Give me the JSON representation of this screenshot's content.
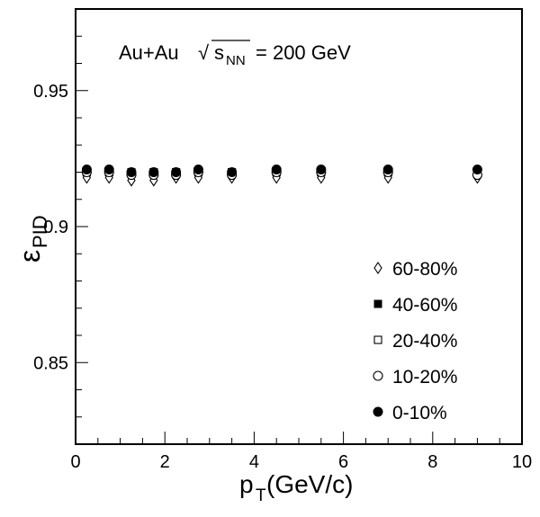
{
  "chart_data": {
    "type": "scatter",
    "xlabel": "p",
    "xlabel_sub": "T",
    "xlabel_unit": "(GeV/c)",
    "ylabel": "ε",
    "ylabel_sub": "PID",
    "xlim": [
      0,
      10
    ],
    "ylim": [
      0.82,
      0.98
    ],
    "x_ticks": [
      0,
      2,
      4,
      6,
      8,
      10
    ],
    "x_tick_labels": [
      "0",
      "2",
      "4",
      "6",
      "8",
      "10"
    ],
    "y_ticks": [
      0.85,
      0.9,
      0.95
    ],
    "y_tick_labels": [
      "0.85",
      "0.9",
      "0.95"
    ],
    "grid": false,
    "legend_position": "bottom-right",
    "annotation": {
      "system": "Au+Au",
      "sqrt_symbol": "√",
      "s_label": "s",
      "s_sub": "NN",
      "energy": "= 200 GeV"
    },
    "x": [
      0.25,
      0.75,
      1.25,
      1.75,
      2.25,
      2.75,
      3.5,
      4.5,
      5.5,
      7.0,
      9.0
    ],
    "series": [
      {
        "name": "60-80%",
        "marker": "open-diamond",
        "values": [
          0.918,
          0.918,
          0.917,
          0.917,
          0.918,
          0.918,
          0.918,
          0.918,
          0.918,
          0.918,
          0.918
        ]
      },
      {
        "name": "40-60%",
        "marker": "filled-square",
        "values": [
          0.92,
          0.92,
          0.92,
          0.92,
          0.92,
          0.92,
          0.92,
          0.92,
          0.92,
          0.92,
          0.92
        ]
      },
      {
        "name": "20-40%",
        "marker": "open-square",
        "values": [
          0.92,
          0.92,
          0.92,
          0.92,
          0.92,
          0.92,
          0.92,
          0.92,
          0.92,
          0.92,
          0.92
        ]
      },
      {
        "name": "10-20%",
        "marker": "open-circle",
        "values": [
          0.92,
          0.92,
          0.919,
          0.919,
          0.919,
          0.92,
          0.919,
          0.92,
          0.92,
          0.92,
          0.919
        ]
      },
      {
        "name": "0-10%",
        "marker": "filled-circle",
        "values": [
          0.921,
          0.921,
          0.92,
          0.92,
          0.92,
          0.921,
          0.92,
          0.921,
          0.921,
          0.921,
          0.921
        ]
      }
    ]
  }
}
